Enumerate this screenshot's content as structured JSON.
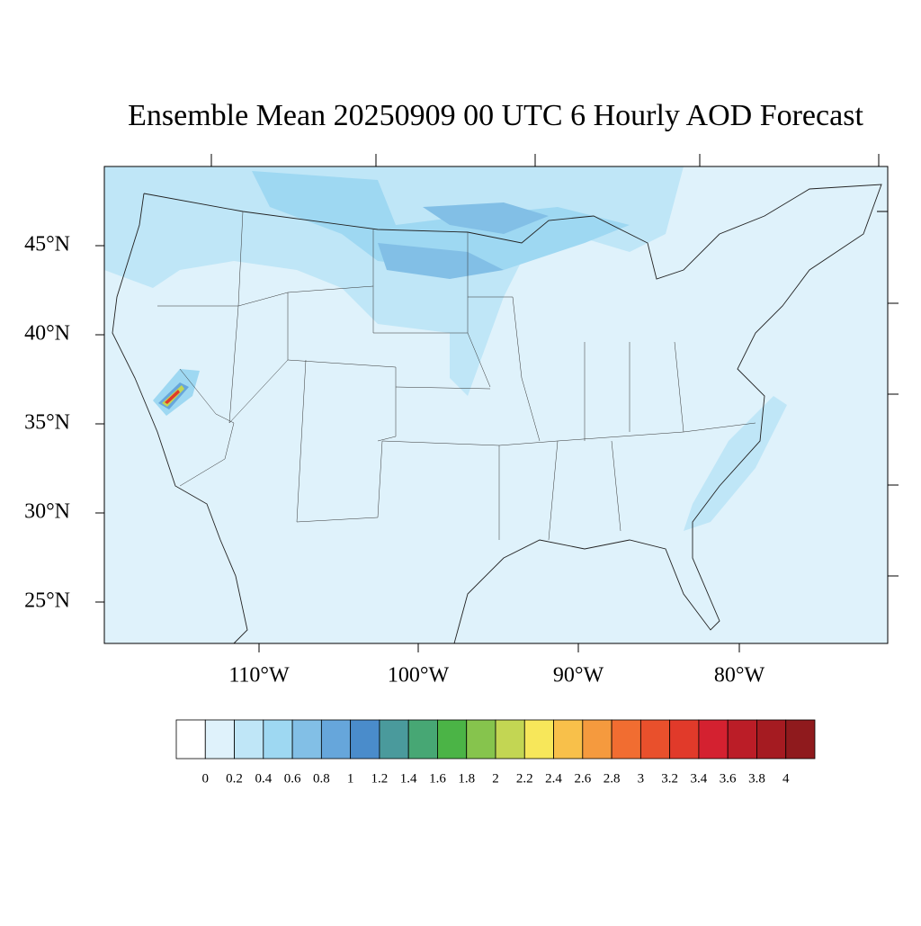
{
  "title": "Ensemble Mean 20250909 00 UTC 6 Hourly AOD Forecast",
  "map": {
    "lat_labels": [
      "45°N",
      "40°N",
      "35°N",
      "30°N",
      "25°N"
    ],
    "lon_labels": [
      "110°W",
      "100°W",
      "90°W",
      "80°W"
    ]
  },
  "colorbar": {
    "levels": [
      0,
      0.2,
      0.4,
      0.6,
      0.8,
      1,
      1.2,
      1.4,
      1.6,
      1.8,
      2,
      2.2,
      2.4,
      2.6,
      2.8,
      3,
      3.2,
      3.4,
      3.6,
      3.8,
      4
    ],
    "colors": [
      "#ffffff",
      "#dff2fb",
      "#bfe6f7",
      "#9ed8f2",
      "#82bfe6",
      "#66a6db",
      "#4a8ccb",
      "#4a9a9c",
      "#47a774",
      "#4bb446",
      "#86c44d",
      "#c3d653",
      "#f7e75a",
      "#f8c04a",
      "#f59a3e",
      "#f16d31",
      "#e9502c",
      "#e13a2a",
      "#d42130",
      "#bb1d27",
      "#a51b21",
      "#8f1a1d"
    ]
  }
}
